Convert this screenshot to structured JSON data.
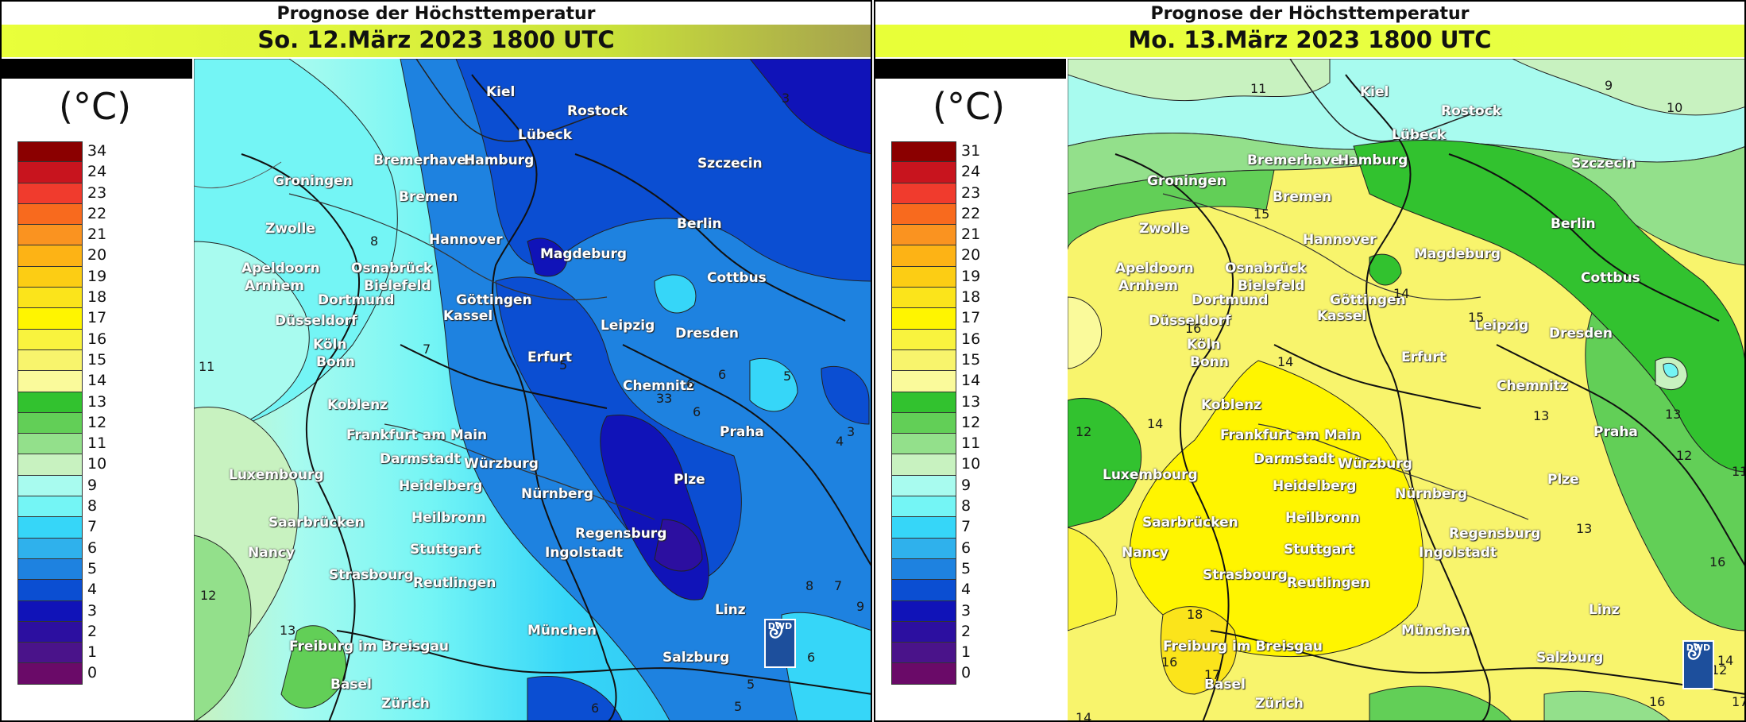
{
  "unit": "(°C)",
  "panels": [
    {
      "title": "Prognose der Höchsttemperatur",
      "date": "So. 12.März 2023 1800 UTC",
      "legend": [
        {
          "label": "34",
          "color": "#8b0000"
        },
        {
          "label": "24",
          "color": "#c8141e"
        },
        {
          "label": "23",
          "color": "#f03b2d"
        },
        {
          "label": "22",
          "color": "#f86a1e"
        },
        {
          "label": "21",
          "color": "#fa9320"
        },
        {
          "label": "20",
          "color": "#fdb315"
        },
        {
          "label": "19",
          "color": "#fccd14"
        },
        {
          "label": "18",
          "color": "#fbe41b"
        },
        {
          "label": "17",
          "color": "#fff500"
        },
        {
          "label": "16",
          "color": "#f9f33e"
        },
        {
          "label": "15",
          "color": "#f8f46c"
        },
        {
          "label": "14",
          "color": "#fafa9b"
        },
        {
          "label": "13",
          "color": "#32c22f"
        },
        {
          "label": "12",
          "color": "#62cf57"
        },
        {
          "label": "11",
          "color": "#93e08b"
        },
        {
          "label": "10",
          "color": "#c8f2c0"
        },
        {
          "label": "9",
          "color": "#a8fbef"
        },
        {
          "label": "8",
          "color": "#74f5f5"
        },
        {
          "label": "7",
          "color": "#36d6f8"
        },
        {
          "label": "6",
          "color": "#2fb1ec"
        },
        {
          "label": "5",
          "color": "#1e82e0"
        },
        {
          "label": "4",
          "color": "#0b4ed2"
        },
        {
          "label": "3",
          "color": "#1013b8"
        },
        {
          "label": "2",
          "color": "#2c0fa0"
        },
        {
          "label": "1",
          "color": "#4a138a"
        },
        {
          "label": "0",
          "color": "#6a0a68"
        }
      ],
      "cities": [
        {
          "name": "Kiel"
        },
        {
          "name": "Rostock"
        },
        {
          "name": "Lübeck"
        },
        {
          "name": "Bremerhaven"
        },
        {
          "name": "Hamburg"
        },
        {
          "name": "Szczecin"
        },
        {
          "name": "Groningen"
        },
        {
          "name": "Bremen"
        },
        {
          "name": "Berlin"
        },
        {
          "name": "Zwolle"
        },
        {
          "name": "Hannover"
        },
        {
          "name": "Magdeburg"
        },
        {
          "name": "Apeldoorn"
        },
        {
          "name": "Osnabrück"
        },
        {
          "name": "Arnhem"
        },
        {
          "name": "Bielefeld"
        },
        {
          "name": "Cottbus"
        },
        {
          "name": "Dortmund"
        },
        {
          "name": "Göttingen"
        },
        {
          "name": "Düsseldorf"
        },
        {
          "name": "Kassel"
        },
        {
          "name": "Leipzig"
        },
        {
          "name": "Dresden"
        },
        {
          "name": "Köln"
        },
        {
          "name": "Bonn"
        },
        {
          "name": "Erfurt"
        },
        {
          "name": "Chemnitz"
        },
        {
          "name": "Koblenz"
        },
        {
          "name": "Frankfurt am Main"
        },
        {
          "name": "Praha"
        },
        {
          "name": "Darmstadt"
        },
        {
          "name": "Luxembourg"
        },
        {
          "name": "Würzburg"
        },
        {
          "name": "Plze"
        },
        {
          "name": "Heidelberg"
        },
        {
          "name": "Nürnberg"
        },
        {
          "name": "Saarbrücken"
        },
        {
          "name": "Heilbronn"
        },
        {
          "name": "Regensburg"
        },
        {
          "name": "Nancy"
        },
        {
          "name": "Stuttgart"
        },
        {
          "name": "Ingolstadt"
        },
        {
          "name": "Strasbourg"
        },
        {
          "name": "Reutlingen"
        },
        {
          "name": "Linz"
        },
        {
          "name": "München"
        },
        {
          "name": "Freiburg im Breisgau"
        },
        {
          "name": "Salzburg"
        },
        {
          "name": "Basel"
        },
        {
          "name": "Zürich"
        }
      ],
      "isolabels": [
        {
          "text": "3"
        },
        {
          "text": "8"
        },
        {
          "text": "7"
        },
        {
          "text": "11"
        },
        {
          "text": "5"
        },
        {
          "text": "6"
        },
        {
          "text": "6"
        },
        {
          "text": "5"
        },
        {
          "text": "33"
        },
        {
          "text": "6"
        },
        {
          "text": "3"
        },
        {
          "text": "4"
        },
        {
          "text": "12"
        },
        {
          "text": "13"
        },
        {
          "text": "7"
        },
        {
          "text": "8"
        },
        {
          "text": "9"
        },
        {
          "text": "6"
        },
        {
          "text": "5"
        },
        {
          "text": "5"
        },
        {
          "text": "6"
        }
      ],
      "logo": "DWD"
    },
    {
      "title": "Prognose der Höchsttemperatur",
      "date": "Mo. 13.März 2023 1800 UTC",
      "legend": [
        {
          "label": "31",
          "color": "#8b0000"
        },
        {
          "label": "24",
          "color": "#c8141e"
        },
        {
          "label": "23",
          "color": "#f03b2d"
        },
        {
          "label": "22",
          "color": "#f86a1e"
        },
        {
          "label": "21",
          "color": "#fa9320"
        },
        {
          "label": "20",
          "color": "#fdb315"
        },
        {
          "label": "19",
          "color": "#fccd14"
        },
        {
          "label": "18",
          "color": "#fbe41b"
        },
        {
          "label": "17",
          "color": "#fff500"
        },
        {
          "label": "16",
          "color": "#f9f33e"
        },
        {
          "label": "15",
          "color": "#f8f46c"
        },
        {
          "label": "14",
          "color": "#fafa9b"
        },
        {
          "label": "13",
          "color": "#32c22f"
        },
        {
          "label": "12",
          "color": "#62cf57"
        },
        {
          "label": "11",
          "color": "#93e08b"
        },
        {
          "label": "10",
          "color": "#c8f2c0"
        },
        {
          "label": "9",
          "color": "#a8fbef"
        },
        {
          "label": "8",
          "color": "#74f5f5"
        },
        {
          "label": "7",
          "color": "#36d6f8"
        },
        {
          "label": "6",
          "color": "#2fb1ec"
        },
        {
          "label": "5",
          "color": "#1e82e0"
        },
        {
          "label": "4",
          "color": "#0b4ed2"
        },
        {
          "label": "3",
          "color": "#1013b8"
        },
        {
          "label": "2",
          "color": "#2c0fa0"
        },
        {
          "label": "1",
          "color": "#4a138a"
        },
        {
          "label": "0",
          "color": "#6a0a68"
        }
      ],
      "cities": [
        {
          "name": "Kiel"
        },
        {
          "name": "Rostock"
        },
        {
          "name": "Lübeck"
        },
        {
          "name": "Bremerhaven"
        },
        {
          "name": "Hamburg"
        },
        {
          "name": "Szczecin"
        },
        {
          "name": "Groningen"
        },
        {
          "name": "Bremen"
        },
        {
          "name": "Berlin"
        },
        {
          "name": "Zwolle"
        },
        {
          "name": "Hannover"
        },
        {
          "name": "Magdeburg"
        },
        {
          "name": "Apeldoorn"
        },
        {
          "name": "Osnabrück"
        },
        {
          "name": "Arnhem"
        },
        {
          "name": "Bielefeld"
        },
        {
          "name": "Cottbus"
        },
        {
          "name": "Dortmund"
        },
        {
          "name": "Göttingen"
        },
        {
          "name": "Düsseldorf"
        },
        {
          "name": "Kassel"
        },
        {
          "name": "Leipzig"
        },
        {
          "name": "Dresden"
        },
        {
          "name": "Köln"
        },
        {
          "name": "Bonn"
        },
        {
          "name": "Erfurt"
        },
        {
          "name": "Chemnitz"
        },
        {
          "name": "Koblenz"
        },
        {
          "name": "Frankfurt am Main"
        },
        {
          "name": "Praha"
        },
        {
          "name": "Darmstadt"
        },
        {
          "name": "Luxembourg"
        },
        {
          "name": "Würzburg"
        },
        {
          "name": "Plze"
        },
        {
          "name": "Heidelberg"
        },
        {
          "name": "Nürnberg"
        },
        {
          "name": "Saarbrücken"
        },
        {
          "name": "Heilbronn"
        },
        {
          "name": "Regensburg"
        },
        {
          "name": "Nancy"
        },
        {
          "name": "Stuttgart"
        },
        {
          "name": "Ingolstadt"
        },
        {
          "name": "Strasbourg"
        },
        {
          "name": "Reutlingen"
        },
        {
          "name": "Linz"
        },
        {
          "name": "München"
        },
        {
          "name": "Freiburg im Breisgau"
        },
        {
          "name": "Salzburg"
        },
        {
          "name": "Basel"
        },
        {
          "name": "Zürich"
        }
      ],
      "isolabels": [
        {
          "text": "11"
        },
        {
          "text": "9"
        },
        {
          "text": "10"
        },
        {
          "text": "15"
        },
        {
          "text": "14"
        },
        {
          "text": "16"
        },
        {
          "text": "14"
        },
        {
          "text": "15"
        },
        {
          "text": "14"
        },
        {
          "text": "13"
        },
        {
          "text": "12"
        },
        {
          "text": "13"
        },
        {
          "text": "12"
        },
        {
          "text": "13"
        },
        {
          "text": "11"
        },
        {
          "text": "18"
        },
        {
          "text": "16"
        },
        {
          "text": "17"
        },
        {
          "text": "16"
        },
        {
          "text": "14"
        },
        {
          "text": "12"
        },
        {
          "text": "14"
        },
        {
          "text": "16"
        },
        {
          "text": "17"
        }
      ],
      "logo": "DWD"
    }
  ]
}
